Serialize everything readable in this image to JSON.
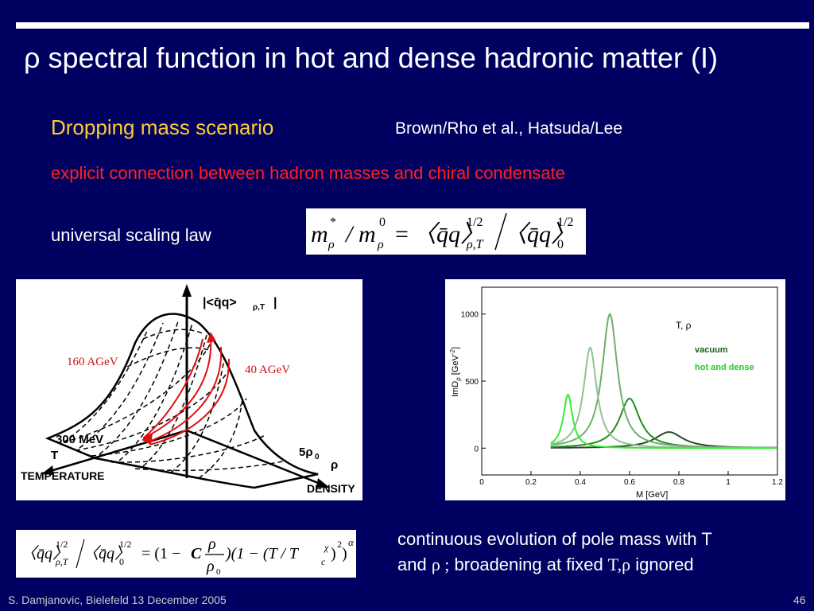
{
  "slide": {
    "title": "ρ spectral function in hot and dense hadronic matter (I)",
    "subtitle": "Dropping mass scenario",
    "authors": "Brown/Rho et al., Hatsuda/Lee",
    "connection": "explicit connection between hadron masses and chiral condensate",
    "scaling_label": "universal scaling law",
    "caption_line1": "continuous evolution of pole mass with T",
    "caption_line2_a": "and ",
    "caption_rho": "ρ ;",
    "caption_line2_b": "  broadening at fixed ",
    "caption_trho": "T,ρ",
    "caption_line2_c": " ignored",
    "footer": "S. Damjanovic, Bielefeld 13 December 2005",
    "page_number": "46"
  },
  "equation1": {
    "m": "m",
    "star": "*",
    "rho": "ρ",
    "slash": "/",
    "zero": "0",
    "eq": "=",
    "cond": "〈q̄q〉",
    "half": "1/2",
    "rhoT": "ρ,T",
    "sub0": "0"
  },
  "equation2": {
    "lhs_cond": "〈q̄q〉",
    "half": "1/2",
    "rhoT": "ρ,T",
    "sub0": "0",
    "eq_part": "= (1 −",
    "C": "C",
    "num": "ρ",
    "den": "ρ",
    "den_sub": "0",
    "mid": ")(1 − (T / T",
    "tc_sup": "χ",
    "tc_sub": "c",
    "pow_close": ")",
    "sq": "2",
    "end": ")",
    "alpha": "α"
  },
  "diagram": {
    "axis_top": "|<q̄q>",
    "axis_top_sub": "ρ,T",
    "axis_top_close": "|",
    "label_160": "160 AGeV",
    "label_40": "40 AGeV",
    "temp_value": "300 MeV",
    "temp_axis": "T",
    "temp_label": "TEMPERATURE",
    "density_value": "5ρ",
    "density_value_sub": "0",
    "density_axis": "ρ",
    "density_label": "DENSITY"
  },
  "chart_data": {
    "type": "line",
    "xlabel": "M [GeV]",
    "ylabel": "ImD",
    "ylabel_sub": "ρ",
    "ylabel_unit": " [GeV",
    "ylabel_sup": "-2",
    "ylabel_close": "]",
    "xlim": [
      0,
      1.2
    ],
    "ylim": [
      -200,
      1200
    ],
    "xticks": [
      "0",
      "0.2",
      "0.4",
      "0.6",
      "0.8",
      "1",
      "1.2"
    ],
    "yticks": [
      "0",
      "500",
      "1000"
    ],
    "legend_title": "T, ρ",
    "legend_vacuum": "vacuum",
    "legend_hot": "hot and dense",
    "colors": {
      "vacuum": "#1a5c1a",
      "hot": "#22cc22"
    },
    "series": [
      {
        "color": "#2a4a2a",
        "peak": 0.76,
        "height": 120,
        "width": 0.14
      },
      {
        "color": "#1f8f1f",
        "peak": 0.6,
        "height": 370,
        "width": 0.1
      },
      {
        "color": "#6fae6f",
        "peak": 0.52,
        "height": 1000,
        "width": 0.075
      },
      {
        "color": "#8fc48f",
        "peak": 0.44,
        "height": 750,
        "width": 0.065
      },
      {
        "color": "#33ee33",
        "peak": 0.35,
        "height": 400,
        "width": 0.045
      }
    ]
  }
}
